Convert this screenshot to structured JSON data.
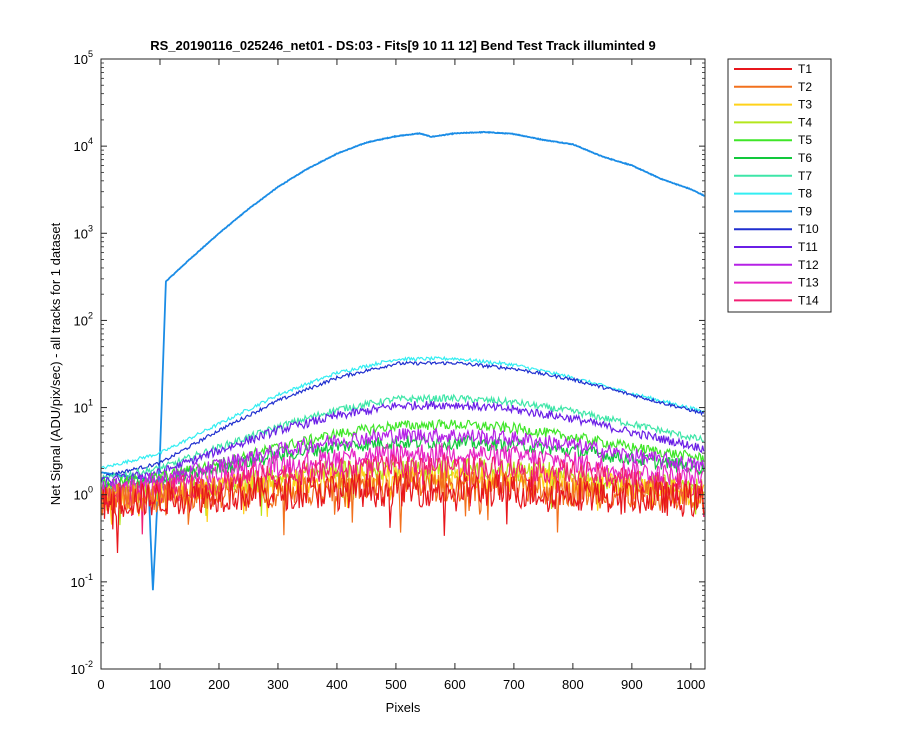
{
  "chart_data": {
    "type": "line",
    "title": "RS_20190116_025246_net01 - DS:03 - Fits[9  10  11  12]   Bend Test      Track illuminted 9",
    "xlabel": "Pixels",
    "ylabel": "Net Signal (ADU/pix/sec) - all tracks for 1 dataset",
    "xlim": [
      0,
      1024
    ],
    "ylim": [
      0.01,
      100000
    ],
    "yscale": "log",
    "grid": false,
    "legend_position": "outside-top-right",
    "x_ticks": [
      0,
      100,
      200,
      300,
      400,
      500,
      600,
      700,
      800,
      900,
      1000
    ],
    "y_ticks": [
      {
        "value": 0.01,
        "base": "10",
        "exp": "-2"
      },
      {
        "value": 0.1,
        "base": "10",
        "exp": "-1"
      },
      {
        "value": 1,
        "base": "10",
        "exp": "0"
      },
      {
        "value": 10,
        "base": "10",
        "exp": "1"
      },
      {
        "value": 100,
        "base": "10",
        "exp": "2"
      },
      {
        "value": 1000,
        "base": "10",
        "exp": "3"
      },
      {
        "value": 10000,
        "base": "10",
        "exp": "4"
      },
      {
        "value": 100000,
        "base": "10",
        "exp": "5"
      }
    ],
    "series": [
      {
        "name": "T1",
        "color": "#e8161c",
        "x": [
          0,
          100,
          200,
          300,
          400,
          500,
          600,
          700,
          800,
          900,
          1023
        ],
        "y": [
          0.8,
          0.9,
          1.0,
          1.05,
          1.1,
          1.15,
          1.15,
          1.1,
          1.05,
          0.95,
          0.85
        ]
      },
      {
        "name": "T2",
        "color": "#f2711d",
        "x": [
          0,
          100,
          200,
          300,
          400,
          500,
          600,
          700,
          800,
          900,
          1023
        ],
        "y": [
          0.85,
          0.95,
          1.05,
          1.1,
          1.2,
          1.25,
          1.25,
          1.2,
          1.1,
          1.0,
          0.9
        ]
      },
      {
        "name": "T3",
        "color": "#ffd21a",
        "x": [
          0,
          100,
          200,
          300,
          400,
          500,
          600,
          700,
          800,
          900,
          1023
        ],
        "y": [
          0.9,
          1.0,
          1.2,
          1.35,
          1.5,
          1.6,
          1.6,
          1.5,
          1.4,
          1.2,
          1.0
        ]
      },
      {
        "name": "T4",
        "color": "#b4e61c",
        "x": [
          0,
          100,
          200,
          300,
          400,
          500,
          600,
          700,
          800,
          900,
          1023
        ],
        "y": [
          1.0,
          1.1,
          1.3,
          1.6,
          1.9,
          2.0,
          2.0,
          1.9,
          1.7,
          1.4,
          1.2
        ]
      },
      {
        "name": "T5",
        "color": "#3fe628",
        "x": [
          0,
          100,
          200,
          300,
          400,
          500,
          600,
          700,
          800,
          900,
          1023
        ],
        "y": [
          1.3,
          1.6,
          2.3,
          3.5,
          5.0,
          6.2,
          6.4,
          5.8,
          4.6,
          3.5,
          2.6
        ]
      },
      {
        "name": "T6",
        "color": "#12c83c",
        "x": [
          0,
          100,
          200,
          300,
          400,
          500,
          600,
          700,
          800,
          900,
          1023
        ],
        "y": [
          1.1,
          1.4,
          2.0,
          2.8,
          3.6,
          4.0,
          4.0,
          3.7,
          3.2,
          2.6,
          2.0
        ]
      },
      {
        "name": "T7",
        "color": "#3ee6a8",
        "x": [
          0,
          100,
          200,
          300,
          400,
          500,
          600,
          700,
          800,
          900,
          1023
        ],
        "y": [
          1.5,
          2.0,
          3.5,
          6.0,
          9.5,
          12.5,
          12.8,
          11.5,
          9.0,
          6.5,
          4.2
        ]
      },
      {
        "name": "T8",
        "color": "#33eef2",
        "x": [
          0,
          100,
          200,
          300,
          400,
          500,
          600,
          700,
          800,
          900,
          1023
        ],
        "y": [
          2.0,
          3.0,
          6.5,
          14.0,
          25.0,
          36.0,
          36.5,
          31.0,
          22.0,
          14.5,
          9.0
        ]
      },
      {
        "name": "T9",
        "color": "#1a8ce6",
        "x": [
          0,
          80,
          88,
          100,
          110,
          150,
          200,
          250,
          300,
          350,
          400,
          450,
          500,
          540,
          560,
          600,
          650,
          700,
          750,
          800,
          850,
          900,
          950,
          1000,
          1023
        ],
        "y": [
          1.8,
          1.5,
          0.08,
          3,
          280,
          500,
          1000,
          1900,
          3400,
          5500,
          8200,
          11000,
          13000,
          14000,
          12800,
          14000,
          14500,
          13800,
          11800,
          10500,
          7600,
          6000,
          4200,
          3200,
          2700
        ]
      },
      {
        "name": "T10",
        "color": "#1f2fcf",
        "x": [
          0,
          100,
          200,
          300,
          400,
          500,
          600,
          700,
          800,
          900,
          1023
        ],
        "y": [
          1.6,
          2.3,
          5.5,
          12.0,
          22.0,
          32.0,
          32.5,
          28.0,
          21.0,
          14.0,
          8.5
        ]
      },
      {
        "name": "T11",
        "color": "#6a1fe6",
        "x": [
          0,
          100,
          200,
          300,
          400,
          500,
          600,
          700,
          800,
          900,
          1023
        ],
        "y": [
          1.4,
          1.8,
          3.2,
          5.5,
          8.0,
          10.5,
          10.8,
          9.5,
          7.5,
          5.2,
          3.4
        ]
      },
      {
        "name": "T12",
        "color": "#b522e6",
        "x": [
          0,
          100,
          200,
          300,
          400,
          500,
          600,
          700,
          800,
          900,
          1023
        ],
        "y": [
          1.2,
          1.5,
          2.2,
          3.2,
          4.2,
          4.8,
          4.8,
          4.4,
          3.7,
          2.8,
          2.1
        ]
      },
      {
        "name": "T13",
        "color": "#e626c6",
        "x": [
          0,
          100,
          200,
          300,
          400,
          500,
          600,
          700,
          800,
          900,
          1023
        ],
        "y": [
          1.05,
          1.25,
          1.7,
          2.2,
          2.7,
          3.0,
          3.0,
          2.8,
          2.4,
          1.9,
          1.5
        ]
      },
      {
        "name": "T14",
        "color": "#f21e73",
        "x": [
          0,
          100,
          200,
          300,
          400,
          500,
          600,
          700,
          800,
          900,
          1023
        ],
        "y": [
          0.95,
          1.1,
          1.4,
          1.7,
          1.9,
          2.1,
          2.1,
          2.0,
          1.8,
          1.5,
          1.2
        ]
      }
    ]
  }
}
